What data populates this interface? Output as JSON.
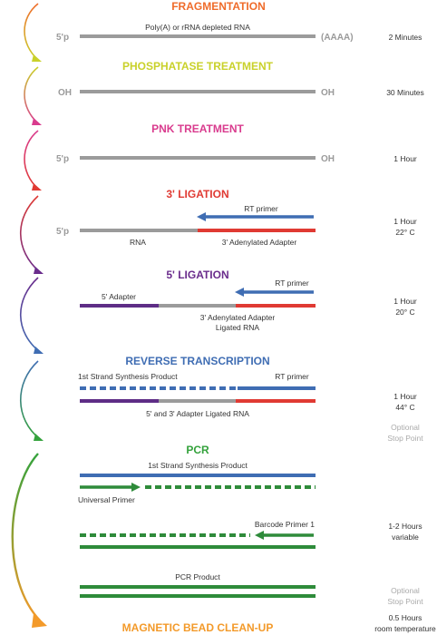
{
  "colors": {
    "gray": "#9b9b9b",
    "blue": "#3f6db3",
    "red": "#e03a33",
    "purple": "#5e2d86",
    "green": "#2e8b3a",
    "frag": "#ef6b2a",
    "phos": "#c9d12a",
    "pnk": "#d93c8e",
    "lig3": "#e03a33",
    "lig5": "#6a2c8c",
    "rt": "#3f6db3",
    "pcr": "#34a23c",
    "bead": "#f39a2a"
  },
  "steps": {
    "fragmentation": {
      "title": "FRAGMENTATION",
      "left_end": "5'p",
      "right_end": "(AAAA)",
      "rna_label": "Poly(A) or rRNA depleted RNA",
      "time": "2 Minutes"
    },
    "phosphatase": {
      "title": "PHOSPHATASE TREATMENT",
      "left_end": "OH",
      "right_end": "OH",
      "time": "30 Minutes"
    },
    "pnk": {
      "title": "PNK TREATMENT",
      "left_end": "5'p",
      "right_end": "OH",
      "time": "1 Hour"
    },
    "ligation3": {
      "title": "3' LIGATION",
      "left_end": "5'p",
      "rt_primer": "RT primer",
      "rna_label": "RNA",
      "adapter_label": "3' Adenylated Adapter",
      "time_line1": "1 Hour",
      "time_line2": "22° C"
    },
    "ligation5": {
      "title": "5' LIGATION",
      "adapter5_label": "5' Adapter",
      "rt_primer": "RT primer",
      "label_line1": "3' Adenylated Adapter",
      "label_line2": "Ligated RNA",
      "time_line1": "1 Hour",
      "time_line2": "20° C"
    },
    "reverse_transcription": {
      "title": "REVERSE TRANSCRIPTION",
      "product_label": "1st Strand Synthesis Product",
      "rt_primer": "RT primer",
      "ligated_label": "5' and 3' Adapter Ligated RNA",
      "time_line1": "1 Hour",
      "time_line2": "44° C",
      "optional_line1": "Optional",
      "optional_line2": "Stop Point"
    },
    "pcr": {
      "title": "PCR",
      "product_label": "1st Strand Synthesis Product",
      "universal_primer": "Universal Primer",
      "barcode_primer": "Barcode Primer 1",
      "pcr_product": "PCR Product",
      "time_line1": "1-2 Hours",
      "time_line2": "variable",
      "optional_line1": "Optional",
      "optional_line2": "Stop Point"
    },
    "bead": {
      "title": "MAGNETIC BEAD CLEAN-UP",
      "time_line1": "0.5 Hours",
      "time_line2": "room temperature"
    }
  }
}
